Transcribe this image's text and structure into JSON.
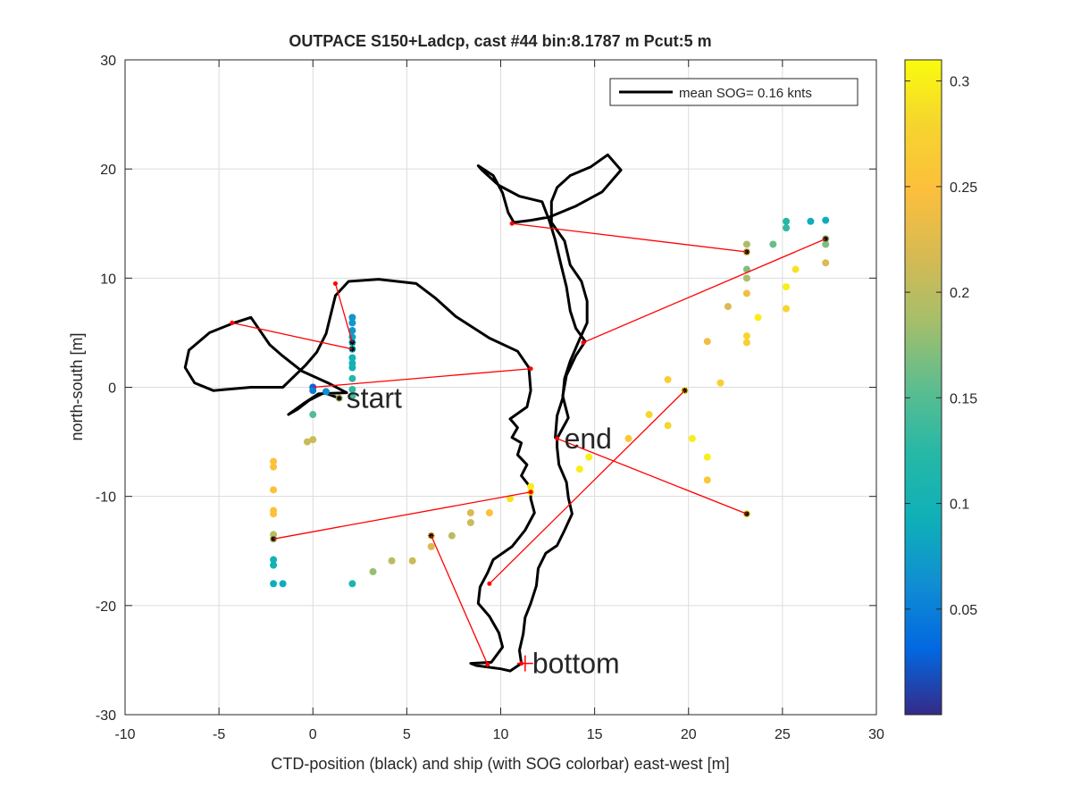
{
  "chart_data": {
    "type": "scatter",
    "title": "OUTPACE S150+Ladcp, cast #44 bin:8.1787 m  Pcut:5 m",
    "xlabel": "CTD-position (black) and ship (with SOG colorbar) east-west [m]",
    "ylabel": "north-south [m]",
    "xlim": [
      -10,
      30
    ],
    "ylim": [
      -30,
      30
    ],
    "xticks": [
      "-10",
      "-5",
      "0",
      "5",
      "10",
      "15",
      "20",
      "25",
      "30"
    ],
    "yticks": [
      "-30",
      "-20",
      "-10",
      "0",
      "10",
      "20",
      "30"
    ],
    "grid": true,
    "legend": {
      "label": "mean SOG=  0.16 knts",
      "location": "top-right"
    },
    "colorbar": {
      "range": [
        0,
        0.31
      ],
      "ticks": [
        "0.05",
        "0.1",
        "0.15",
        "0.2",
        "0.25",
        "0.3"
      ],
      "colormap": [
        "#352a87",
        "#0268e1",
        "#108ed2",
        "#0fb0b8",
        "#27b8a6",
        "#5dbd8f",
        "#a5be6a",
        "#d6ba53",
        "#fcbf3c",
        "#f6d42e",
        "#f9fb0e"
      ]
    },
    "annotations": [
      {
        "text": "start",
        "x": 1.4,
        "y": -1.0
      },
      {
        "text": "end",
        "x": 13.0,
        "y": -4.7
      },
      {
        "text": "bottom",
        "x": 11.3,
        "y": -25.3
      }
    ],
    "ctd_track": {
      "color": "#000000",
      "points": [
        [
          1.4,
          -1.0
        ],
        [
          0.6,
          -0.5
        ],
        [
          -0.2,
          -1.2
        ],
        [
          -0.8,
          -2.0
        ],
        [
          -1.3,
          -2.5
        ],
        [
          -0.5,
          -1.5
        ],
        [
          0.3,
          -0.6
        ],
        [
          1.8,
          -0.5
        ],
        [
          0.8,
          0.4
        ],
        [
          -0.6,
          1.5
        ],
        [
          -1.7,
          3.0
        ],
        [
          -2.3,
          3.9
        ],
        [
          -3.3,
          6.4
        ],
        [
          -4.2,
          5.9
        ],
        [
          -5.5,
          5.0
        ],
        [
          -6.6,
          3.4
        ],
        [
          -6.8,
          1.8
        ],
        [
          -6.3,
          0.4
        ],
        [
          -5.3,
          -0.3
        ],
        [
          -3.3,
          0.0
        ],
        [
          -1.6,
          0.0
        ],
        [
          -0.4,
          2.0
        ],
        [
          0.2,
          3.2
        ],
        [
          0.7,
          4.9
        ],
        [
          1.2,
          8.4
        ],
        [
          1.9,
          9.7
        ],
        [
          3.5,
          9.9
        ],
        [
          5.5,
          9.5
        ],
        [
          6.5,
          8.2
        ],
        [
          7.6,
          6.5
        ],
        [
          9.4,
          4.5
        ],
        [
          10.9,
          3.3
        ],
        [
          11.5,
          1.8
        ],
        [
          11.6,
          -0.3
        ],
        [
          11.4,
          -1.8
        ],
        [
          10.5,
          -2.9
        ],
        [
          10.9,
          -3.7
        ],
        [
          10.6,
          -4.6
        ],
        [
          11.1,
          -5.1
        ],
        [
          10.9,
          -6.2
        ],
        [
          11.4,
          -7.1
        ],
        [
          11.1,
          -8.1
        ],
        [
          11.6,
          -9.2
        ],
        [
          11.6,
          -10.2
        ],
        [
          11.8,
          -11.5
        ],
        [
          11.3,
          -13.1
        ],
        [
          10.6,
          -14.6
        ],
        [
          9.6,
          -15.8
        ],
        [
          9.3,
          -17.0
        ],
        [
          8.9,
          -18.3
        ],
        [
          8.8,
          -19.8
        ],
        [
          9.4,
          -21.0
        ],
        [
          9.9,
          -22.5
        ],
        [
          10.1,
          -23.8
        ],
        [
          9.5,
          -25.2
        ],
        [
          8.4,
          -25.3
        ],
        [
          8.7,
          -25.5
        ],
        [
          10.0,
          -25.8
        ],
        [
          10.5,
          -26.0
        ],
        [
          11.1,
          -25.3
        ],
        [
          11.0,
          -24.1
        ],
        [
          11.2,
          -22.6
        ],
        [
          11.3,
          -21.1
        ],
        [
          11.6,
          -19.8
        ],
        [
          11.9,
          -18.2
        ],
        [
          12.0,
          -16.6
        ],
        [
          12.4,
          -15.2
        ],
        [
          13.0,
          -14.5
        ],
        [
          13.4,
          -13.1
        ],
        [
          13.8,
          -11.6
        ],
        [
          13.6,
          -10.1
        ],
        [
          13.5,
          -8.7
        ],
        [
          13.1,
          -7.1
        ],
        [
          13.0,
          -5.5
        ],
        [
          13.0,
          -4.7
        ],
        [
          13.6,
          -2.8
        ],
        [
          13.3,
          -0.8
        ],
        [
          13.5,
          1.1
        ],
        [
          14.0,
          2.9
        ],
        [
          14.5,
          4.2
        ],
        [
          14.0,
          5.4
        ],
        [
          13.7,
          7.0
        ],
        [
          13.5,
          9.2
        ],
        [
          13.2,
          11.3
        ],
        [
          12.9,
          13.5
        ],
        [
          12.6,
          15.2
        ],
        [
          12.2,
          17.0
        ],
        [
          11.0,
          17.5
        ],
        [
          9.9,
          18.5
        ],
        [
          9.0,
          19.9
        ],
        [
          8.8,
          20.3
        ],
        [
          9.6,
          19.4
        ],
        [
          10.1,
          17.8
        ],
        [
          10.4,
          16.0
        ],
        [
          10.7,
          15.1
        ],
        [
          11.6,
          15.3
        ],
        [
          12.6,
          15.6
        ],
        [
          14.0,
          16.6
        ],
        [
          15.4,
          17.9
        ],
        [
          16.4,
          19.9
        ],
        [
          15.7,
          21.3
        ],
        [
          14.8,
          20.2
        ],
        [
          13.7,
          19.4
        ],
        [
          13.0,
          18.3
        ],
        [
          12.7,
          17.0
        ],
        [
          12.7,
          15.1
        ],
        [
          13.4,
          13.4
        ],
        [
          13.7,
          11.2
        ],
        [
          14.3,
          9.7
        ],
        [
          14.6,
          7.9
        ],
        [
          14.6,
          5.9
        ],
        [
          14.2,
          4.4
        ],
        [
          13.7,
          2.4
        ],
        [
          13.4,
          0.8
        ],
        [
          13.3,
          -1.0
        ],
        [
          13.0,
          -2.6
        ],
        [
          12.9,
          -4.7
        ]
      ]
    },
    "links": [
      [
        [
          1.2,
          9.5
        ],
        [
          2.1,
          4.1
        ]
      ],
      [
        [
          -4.3,
          5.9
        ],
        [
          2.1,
          3.5
        ]
      ],
      [
        [
          0.0,
          0.0
        ],
        [
          11.6,
          1.7
        ]
      ],
      [
        [
          10.6,
          15.0
        ],
        [
          23.1,
          12.4
        ]
      ],
      [
        [
          14.4,
          4.1
        ],
        [
          27.3,
          13.6
        ]
      ],
      [
        [
          13.0,
          -4.7
        ],
        [
          23.1,
          -11.6
        ]
      ],
      [
        [
          9.4,
          -18.0
        ],
        [
          19.8,
          -0.3
        ]
      ],
      [
        [
          -2.1,
          -13.9
        ],
        [
          11.6,
          -9.6
        ]
      ],
      [
        [
          6.3,
          -13.6
        ],
        [
          9.3,
          -25.4
        ]
      ],
      [
        [
          11.1,
          -25.3
        ],
        [
          11.1,
          -25.3
        ]
      ]
    ],
    "link_color": "#ff0000",
    "ship_marks": [
      [
        1.2,
        9.5
      ],
      [
        -4.3,
        5.9
      ],
      [
        11.6,
        1.7
      ],
      [
        10.6,
        15.0
      ],
      [
        14.4,
        4.1
      ],
      [
        13.0,
        -4.7
      ],
      [
        9.4,
        -18.0
      ],
      [
        11.6,
        -9.6
      ],
      [
        9.3,
        -25.4
      ],
      [
        11.1,
        -25.3
      ]
    ],
    "ship_points": [
      {
        "x": 2.1,
        "y": 6.4,
        "v": 0.07
      },
      {
        "x": 2.1,
        "y": 5.9,
        "v": 0.07
      },
      {
        "x": 2.1,
        "y": 5.2,
        "v": 0.07
      },
      {
        "x": 2.1,
        "y": 4.6,
        "v": 0.08
      },
      {
        "x": 2.1,
        "y": 4.1,
        "v": 0.09
      },
      {
        "x": 2.1,
        "y": 3.5,
        "v": 0.09
      },
      {
        "x": 2.1,
        "y": 2.7,
        "v": 0.1
      },
      {
        "x": 2.1,
        "y": 2.2,
        "v": 0.1
      },
      {
        "x": 2.1,
        "y": 1.8,
        "v": 0.1
      },
      {
        "x": 2.1,
        "y": 0.8,
        "v": 0.12
      },
      {
        "x": 2.1,
        "y": -0.2,
        "v": 0.13
      },
      {
        "x": 2.1,
        "y": -0.8,
        "v": 0.14
      },
      {
        "x": 0.0,
        "y": 0.0,
        "v": 0.03
      },
      {
        "x": 0.0,
        "y": -0.3,
        "v": 0.05
      },
      {
        "x": 0.7,
        "y": -0.4,
        "v": 0.06
      },
      {
        "x": 1.4,
        "y": -1.0,
        "v": 0.2
      },
      {
        "x": 0.0,
        "y": -2.5,
        "v": 0.15
      },
      {
        "x": 0.0,
        "y": -4.8,
        "v": 0.21
      },
      {
        "x": -0.3,
        "y": -5.0,
        "v": 0.21
      },
      {
        "x": -2.1,
        "y": -6.8,
        "v": 0.25
      },
      {
        "x": -2.1,
        "y": -7.3,
        "v": 0.25
      },
      {
        "x": -2.1,
        "y": -9.4,
        "v": 0.25
      },
      {
        "x": -2.1,
        "y": -11.3,
        "v": 0.25
      },
      {
        "x": -2.1,
        "y": -11.6,
        "v": 0.25
      },
      {
        "x": -2.1,
        "y": -13.5,
        "v": 0.2
      },
      {
        "x": -2.1,
        "y": -13.9,
        "v": 0.19
      },
      {
        "x": -2.1,
        "y": -15.8,
        "v": 0.1
      },
      {
        "x": -2.1,
        "y": -16.3,
        "v": 0.1
      },
      {
        "x": -2.1,
        "y": -18.0,
        "v": 0.09
      },
      {
        "x": -1.6,
        "y": -18.0,
        "v": 0.09
      },
      {
        "x": 2.1,
        "y": -18.0,
        "v": 0.11
      },
      {
        "x": 3.2,
        "y": -16.9,
        "v": 0.18
      },
      {
        "x": 4.2,
        "y": -15.9,
        "v": 0.2
      },
      {
        "x": 5.3,
        "y": -15.9,
        "v": 0.21
      },
      {
        "x": 6.3,
        "y": -14.6,
        "v": 0.22
      },
      {
        "x": 6.3,
        "y": -13.6,
        "v": 0.24
      },
      {
        "x": 7.4,
        "y": -13.6,
        "v": 0.2
      },
      {
        "x": 8.4,
        "y": -12.4,
        "v": 0.21
      },
      {
        "x": 8.4,
        "y": -11.5,
        "v": 0.22
      },
      {
        "x": 9.4,
        "y": -11.5,
        "v": 0.25
      },
      {
        "x": 10.5,
        "y": -10.2,
        "v": 0.29
      },
      {
        "x": 11.6,
        "y": -9.6,
        "v": 0.29
      },
      {
        "x": 11.6,
        "y": -9.1,
        "v": 0.3
      },
      {
        "x": 14.2,
        "y": -7.5,
        "v": 0.3
      },
      {
        "x": 14.7,
        "y": -6.4,
        "v": 0.3
      },
      {
        "x": 16.8,
        "y": -4.7,
        "v": 0.26
      },
      {
        "x": 17.9,
        "y": -2.5,
        "v": 0.28
      },
      {
        "x": 18.9,
        "y": -3.5,
        "v": 0.28
      },
      {
        "x": 18.9,
        "y": 0.7,
        "v": 0.27
      },
      {
        "x": 19.8,
        "y": -0.3,
        "v": 0.29
      },
      {
        "x": 20.2,
        "y": -4.7,
        "v": 0.3
      },
      {
        "x": 21.0,
        "y": -6.4,
        "v": 0.3
      },
      {
        "x": 21.0,
        "y": -8.5,
        "v": 0.26
      },
      {
        "x": 21.7,
        "y": 0.4,
        "v": 0.27
      },
      {
        "x": 23.1,
        "y": -11.6,
        "v": 0.28
      },
      {
        "x": 21.0,
        "y": 4.2,
        "v": 0.24
      },
      {
        "x": 22.1,
        "y": 7.4,
        "v": 0.22
      },
      {
        "x": 23.1,
        "y": 4.1,
        "v": 0.27
      },
      {
        "x": 23.1,
        "y": 4.7,
        "v": 0.28
      },
      {
        "x": 23.1,
        "y": 8.6,
        "v": 0.24
      },
      {
        "x": 23.1,
        "y": 10.0,
        "v": 0.19
      },
      {
        "x": 23.1,
        "y": 10.8,
        "v": 0.17
      },
      {
        "x": 23.1,
        "y": 12.4,
        "v": 0.22
      },
      {
        "x": 23.1,
        "y": 13.1,
        "v": 0.19
      },
      {
        "x": 23.7,
        "y": 6.4,
        "v": 0.3
      },
      {
        "x": 24.5,
        "y": 13.1,
        "v": 0.16
      },
      {
        "x": 25.2,
        "y": 7.2,
        "v": 0.28
      },
      {
        "x": 25.2,
        "y": 9.2,
        "v": 0.3
      },
      {
        "x": 25.2,
        "y": 14.6,
        "v": 0.13
      },
      {
        "x": 25.2,
        "y": 15.2,
        "v": 0.12
      },
      {
        "x": 25.7,
        "y": 10.8,
        "v": 0.29
      },
      {
        "x": 26.5,
        "y": 15.2,
        "v": 0.09
      },
      {
        "x": 27.3,
        "y": 15.3,
        "v": 0.09
      },
      {
        "x": 27.3,
        "y": 13.6,
        "v": 0.18
      },
      {
        "x": 27.3,
        "y": 13.1,
        "v": 0.17
      },
      {
        "x": 27.3,
        "y": 11.4,
        "v": 0.22
      }
    ],
    "ship_marked_points": [
      [
        2.1,
        4.1
      ],
      [
        2.1,
        3.5
      ],
      [
        1.4,
        -1.0
      ],
      [
        -2.1,
        -13.9
      ],
      [
        6.3,
        -13.6
      ],
      [
        19.8,
        -0.3
      ],
      [
        23.1,
        -11.6
      ],
      [
        23.1,
        12.4
      ],
      [
        27.3,
        13.6
      ]
    ]
  }
}
